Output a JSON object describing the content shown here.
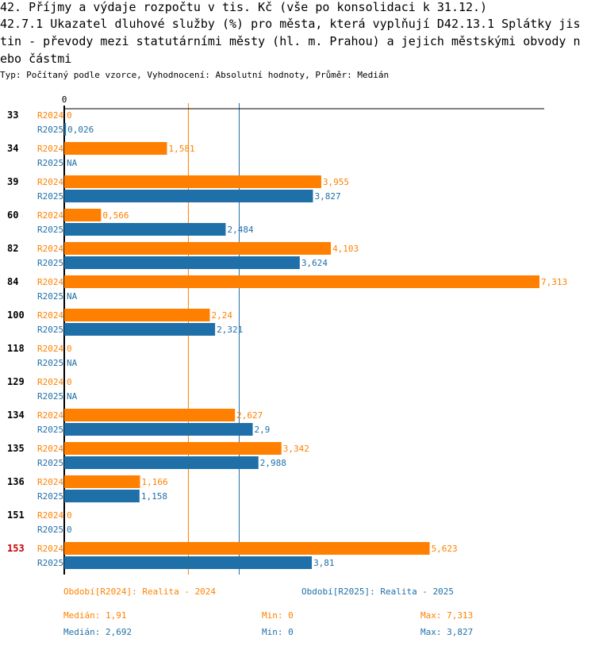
{
  "title_lines": [
    "42. Příjmy a výdaje rozpočtu v tis. Kč (vše po konsolidaci k 31.12.)",
    "42.7.1 Ukazatel dluhové služby (%) pro města, která vyplňují D42.13.1 Splátky jis",
    "tin - převody mezi statutárními městy (hl. m. Prahou) a jejich městskými obvody n",
    "ebo částmi"
  ],
  "subtitle": "Typ: Počítaný podle vzorce, Vyhodnocení: Absolutní hodnoty, Průměr: Medián",
  "colors": {
    "r2024": "#ff8000",
    "r2025": "#1f6fa8",
    "highlight": "#cc0000",
    "axis": "#000000"
  },
  "chart_data": {
    "type": "bar",
    "orientation": "horizontal",
    "xlim": [
      0,
      7.313
    ],
    "x_tick_labels": [
      "0"
    ],
    "categories": [
      "33",
      "34",
      "39",
      "60",
      "82",
      "84",
      "100",
      "118",
      "129",
      "134",
      "135",
      "136",
      "151",
      "153"
    ],
    "highlighted_category": "153",
    "series": [
      {
        "name": "R2024",
        "values": [
          0,
          1.581,
          3.955,
          0.566,
          4.103,
          7.313,
          2.24,
          0,
          0,
          2.627,
          3.342,
          1.166,
          0,
          5.623
        ],
        "labels": [
          "0",
          "1,581",
          "3,955",
          "0,566",
          "4,103",
          "7,313",
          "2,24",
          "0",
          "0",
          "2,627",
          "3,342",
          "1,166",
          "0",
          "5,623"
        ]
      },
      {
        "name": "R2025",
        "values": [
          0.026,
          null,
          3.827,
          2.484,
          3.624,
          null,
          2.321,
          null,
          null,
          2.9,
          2.988,
          1.158,
          0,
          3.81
        ],
        "labels": [
          "0,026",
          "NA",
          "3,827",
          "2,484",
          "3,624",
          "NA",
          "2,321",
          "NA",
          "NA",
          "2,9",
          "2,988",
          "1,158",
          "0",
          "3,81"
        ]
      }
    ],
    "reference_lines": [
      {
        "series": "R2024",
        "label": "Medián",
        "value": 1.91
      },
      {
        "series": "R2025",
        "label": "Medián",
        "value": 2.692
      }
    ]
  },
  "legend": {
    "r2024": "Období[R2024]: Realita - 2024",
    "r2025": "Období[R2025]: Realita - 2025"
  },
  "stats": {
    "r2024": {
      "median": "Medián: 1,91",
      "min": "Min: 0",
      "max": "Max: 7,313"
    },
    "r2025": {
      "median": "Medián: 2,692",
      "min": "Min: 0",
      "max": "Max: 3,827"
    }
  }
}
